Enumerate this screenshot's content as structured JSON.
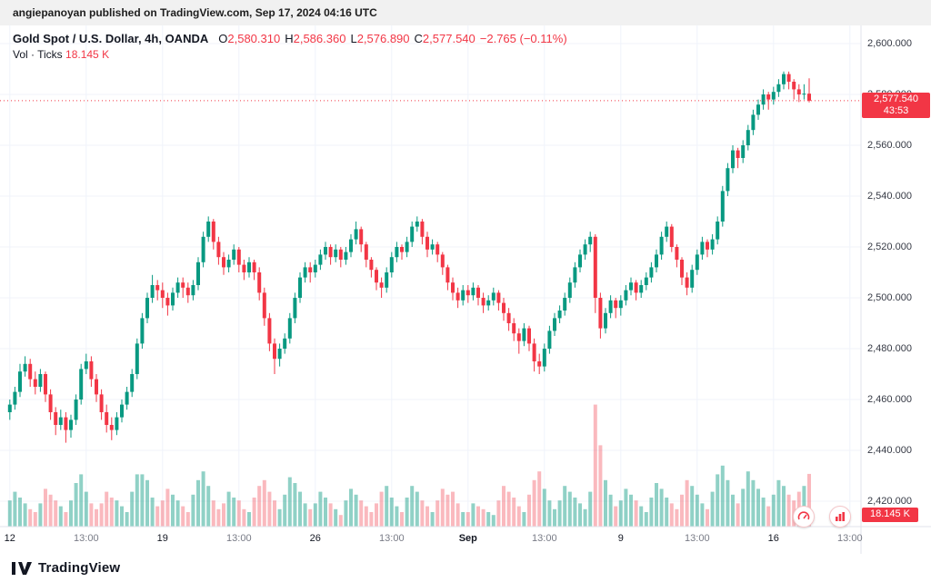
{
  "attribution": "angiepanoyan published on TradingView.com, Sep 17, 2024 04:16 UTC",
  "legend": {
    "symbol": "Gold Spot / U.S. Dollar, 4h, OANDA",
    "o_label": "O",
    "o_value": "2,580.310",
    "h_label": "H",
    "h_value": "2,586.360",
    "l_label": "L",
    "l_value": "2,576.890",
    "c_label": "C",
    "c_value": "2,577.540",
    "change": "−2.765 (−0.11%)",
    "vol_label": "Vol · Ticks",
    "vol_value": "18.145 K"
  },
  "price_badge": {
    "price": "2,577.540",
    "countdown": "43:53"
  },
  "volume_badge": {
    "value": "18.145 K"
  },
  "footer": {
    "brand": "TradingView"
  },
  "colors": {
    "up": "#089981",
    "down": "#f23645",
    "volume_up": "rgba(8,153,129,0.45)",
    "volume_down": "rgba(242,54,69,0.35)",
    "grid": "#f0f3fa",
    "axis_line": "#e0e3eb"
  },
  "chart_data": {
    "type": "candlestick",
    "symbol": "Gold Spot / U.S. Dollar",
    "interval": "4h",
    "exchange": "OANDA",
    "open": 2580.31,
    "high": 2586.36,
    "low": 2576.89,
    "close": 2577.54,
    "change": -2.765,
    "change_pct": -0.11,
    "last_price": 2577.54,
    "countdown": "43:53",
    "volume_label": "18.145 K",
    "y_axis": {
      "min": 2420,
      "max": 2600,
      "step": 20,
      "labels": [
        "2,600.000",
        "2,580.000",
        "2,560.000",
        "2,540.000",
        "2,520.000",
        "2,500.000",
        "2,480.000",
        "2,460.000",
        "2,440.000",
        "2,420.000"
      ]
    },
    "x_ticks": [
      {
        "label": "12",
        "index": 0,
        "major": true
      },
      {
        "label": "13:00",
        "index": 15
      },
      {
        "label": "19",
        "index": 30,
        "major": true
      },
      {
        "label": "13:00",
        "index": 45
      },
      {
        "label": "26",
        "index": 60,
        "major": true
      },
      {
        "label": "13:00",
        "index": 75
      },
      {
        "label": "Sep",
        "index": 90,
        "major": true,
        "bold": true
      },
      {
        "label": "13:00",
        "index": 105
      },
      {
        "label": "9",
        "index": 120,
        "major": true
      },
      {
        "label": "13:00",
        "index": 135
      },
      {
        "label": "16",
        "index": 150,
        "major": true
      },
      {
        "label": "13:00",
        "index": 165
      }
    ],
    "candles": [
      [
        2455,
        2460,
        2452,
        2458
      ],
      [
        2458,
        2465,
        2456,
        2463
      ],
      [
        2463,
        2474,
        2461,
        2471
      ],
      [
        2471,
        2477,
        2469,
        2474
      ],
      [
        2474,
        2476,
        2465,
        2468
      ],
      [
        2468,
        2471,
        2462,
        2465
      ],
      [
        2465,
        2472,
        2463,
        2470
      ],
      [
        2470,
        2471,
        2459,
        2462
      ],
      [
        2462,
        2464,
        2452,
        2455
      ],
      [
        2455,
        2457,
        2446,
        2450
      ],
      [
        2450,
        2456,
        2448,
        2453
      ],
      [
        2453,
        2455,
        2443,
        2448
      ],
      [
        2448,
        2454,
        2445,
        2452
      ],
      [
        2452,
        2462,
        2450,
        2460
      ],
      [
        2460,
        2474,
        2458,
        2472
      ],
      [
        2472,
        2478,
        2470,
        2475
      ],
      [
        2475,
        2477,
        2465,
        2468
      ],
      [
        2468,
        2470,
        2459,
        2462
      ],
      [
        2462,
        2464,
        2452,
        2455
      ],
      [
        2455,
        2458,
        2447,
        2450
      ],
      [
        2450,
        2453,
        2444,
        2448
      ],
      [
        2448,
        2455,
        2446,
        2453
      ],
      [
        2453,
        2460,
        2451,
        2458
      ],
      [
        2458,
        2465,
        2456,
        2463
      ],
      [
        2463,
        2472,
        2461,
        2470
      ],
      [
        2470,
        2484,
        2468,
        2482
      ],
      [
        2482,
        2494,
        2480,
        2492
      ],
      [
        2492,
        2502,
        2490,
        2500
      ],
      [
        2500,
        2509,
        2498,
        2505
      ],
      [
        2505,
        2507,
        2499,
        2503
      ],
      [
        2503,
        2506,
        2496,
        2500
      ],
      [
        2500,
        2502,
        2493,
        2497
      ],
      [
        2497,
        2504,
        2495,
        2502
      ],
      [
        2502,
        2508,
        2500,
        2506
      ],
      [
        2506,
        2508,
        2500,
        2504
      ],
      [
        2504,
        2506,
        2498,
        2501
      ],
      [
        2501,
        2507,
        2499,
        2505
      ],
      [
        2505,
        2516,
        2503,
        2514
      ],
      [
        2514,
        2526,
        2512,
        2524
      ],
      [
        2524,
        2532,
        2522,
        2530
      ],
      [
        2530,
        2531,
        2519,
        2522
      ],
      [
        2522,
        2524,
        2513,
        2516
      ],
      [
        2516,
        2518,
        2509,
        2512
      ],
      [
        2512,
        2517,
        2510,
        2515
      ],
      [
        2515,
        2521,
        2513,
        2519
      ],
      [
        2519,
        2520,
        2510,
        2513
      ],
      [
        2513,
        2515,
        2507,
        2510
      ],
      [
        2510,
        2516,
        2508,
        2514
      ],
      [
        2514,
        2515,
        2507,
        2510
      ],
      [
        2510,
        2512,
        2499,
        2502
      ],
      [
        2502,
        2504,
        2489,
        2492
      ],
      [
        2492,
        2494,
        2479,
        2482
      ],
      [
        2482,
        2484,
        2470,
        2476
      ],
      [
        2476,
        2482,
        2473,
        2480
      ],
      [
        2480,
        2486,
        2478,
        2484
      ],
      [
        2484,
        2494,
        2482,
        2492
      ],
      [
        2492,
        2502,
        2490,
        2500
      ],
      [
        2500,
        2510,
        2498,
        2508
      ],
      [
        2508,
        2514,
        2506,
        2512
      ],
      [
        2512,
        2514,
        2506,
        2510
      ],
      [
        2510,
        2515,
        2508,
        2513
      ],
      [
        2513,
        2519,
        2511,
        2517
      ],
      [
        2517,
        2522,
        2515,
        2520
      ],
      [
        2520,
        2521,
        2513,
        2516
      ],
      [
        2516,
        2521,
        2514,
        2519
      ],
      [
        2519,
        2520,
        2512,
        2515
      ],
      [
        2515,
        2520,
        2513,
        2518
      ],
      [
        2518,
        2525,
        2516,
        2523
      ],
      [
        2523,
        2530,
        2521,
        2527
      ],
      [
        2527,
        2528,
        2518,
        2521
      ],
      [
        2521,
        2522,
        2512,
        2515
      ],
      [
        2515,
        2516,
        2508,
        2511
      ],
      [
        2511,
        2512,
        2503,
        2506
      ],
      [
        2506,
        2508,
        2500,
        2504
      ],
      [
        2504,
        2512,
        2502,
        2510
      ],
      [
        2510,
        2518,
        2508,
        2516
      ],
      [
        2516,
        2522,
        2514,
        2520
      ],
      [
        2520,
        2521,
        2515,
        2518
      ],
      [
        2518,
        2524,
        2516,
        2522
      ],
      [
        2522,
        2530,
        2520,
        2528
      ],
      [
        2528,
        2532,
        2526,
        2530
      ],
      [
        2530,
        2531,
        2521,
        2524
      ],
      [
        2524,
        2526,
        2516,
        2519
      ],
      [
        2519,
        2523,
        2517,
        2521
      ],
      [
        2521,
        2522,
        2514,
        2517
      ],
      [
        2517,
        2518,
        2509,
        2512
      ],
      [
        2512,
        2513,
        2503,
        2506
      ],
      [
        2506,
        2508,
        2499,
        2502
      ],
      [
        2502,
        2504,
        2496,
        2499
      ],
      [
        2499,
        2505,
        2497,
        2503
      ],
      [
        2503,
        2505,
        2498,
        2501
      ],
      [
        2501,
        2506,
        2499,
        2504
      ],
      [
        2504,
        2505,
        2497,
        2500
      ],
      [
        2500,
        2502,
        2494,
        2497
      ],
      [
        2497,
        2501,
        2495,
        2499
      ],
      [
        2499,
        2504,
        2497,
        2502
      ],
      [
        2502,
        2503,
        2495,
        2498
      ],
      [
        2498,
        2500,
        2491,
        2494
      ],
      [
        2494,
        2496,
        2487,
        2490
      ],
      [
        2490,
        2492,
        2483,
        2486
      ],
      [
        2486,
        2488,
        2478,
        2483
      ],
      [
        2483,
        2490,
        2481,
        2488
      ],
      [
        2488,
        2489,
        2479,
        2482
      ],
      [
        2482,
        2484,
        2471,
        2475
      ],
      [
        2475,
        2478,
        2470,
        2473
      ],
      [
        2473,
        2482,
        2471,
        2480
      ],
      [
        2480,
        2489,
        2478,
        2487
      ],
      [
        2487,
        2494,
        2485,
        2492
      ],
      [
        2492,
        2497,
        2490,
        2495
      ],
      [
        2495,
        2502,
        2493,
        2500
      ],
      [
        2500,
        2508,
        2498,
        2506
      ],
      [
        2506,
        2514,
        2504,
        2512
      ],
      [
        2512,
        2519,
        2510,
        2517
      ],
      [
        2517,
        2523,
        2515,
        2521
      ],
      [
        2521,
        2526,
        2518,
        2524
      ],
      [
        2524,
        2525,
        2494,
        2500
      ],
      [
        2500,
        2502,
        2484,
        2488
      ],
      [
        2488,
        2496,
        2486,
        2494
      ],
      [
        2494,
        2501,
        2492,
        2499
      ],
      [
        2499,
        2500,
        2492,
        2496
      ],
      [
        2496,
        2501,
        2493,
        2499
      ],
      [
        2499,
        2505,
        2497,
        2503
      ],
      [
        2503,
        2508,
        2501,
        2506
      ],
      [
        2506,
        2507,
        2499,
        2502
      ],
      [
        2502,
        2507,
        2500,
        2505
      ],
      [
        2505,
        2510,
        2503,
        2508
      ],
      [
        2508,
        2514,
        2506,
        2512
      ],
      [
        2512,
        2519,
        2510,
        2517
      ],
      [
        2517,
        2526,
        2515,
        2524
      ],
      [
        2524,
        2530,
        2522,
        2528
      ],
      [
        2528,
        2529,
        2518,
        2520
      ],
      [
        2520,
        2521,
        2512,
        2515
      ],
      [
        2515,
        2516,
        2505,
        2508
      ],
      [
        2508,
        2510,
        2501,
        2504
      ],
      [
        2504,
        2513,
        2502,
        2511
      ],
      [
        2511,
        2519,
        2509,
        2517
      ],
      [
        2517,
        2524,
        2515,
        2522
      ],
      [
        2522,
        2523,
        2516,
        2519
      ],
      [
        2519,
        2525,
        2517,
        2523
      ],
      [
        2523,
        2532,
        2521,
        2530
      ],
      [
        2530,
        2544,
        2528,
        2542
      ],
      [
        2542,
        2553,
        2540,
        2551
      ],
      [
        2551,
        2560,
        2549,
        2558
      ],
      [
        2558,
        2559,
        2551,
        2555
      ],
      [
        2555,
        2562,
        2553,
        2560
      ],
      [
        2560,
        2568,
        2558,
        2566
      ],
      [
        2566,
        2574,
        2564,
        2572
      ],
      [
        2572,
        2578,
        2570,
        2576
      ],
      [
        2576,
        2582,
        2574,
        2580
      ],
      [
        2580,
        2581,
        2574,
        2578
      ],
      [
        2578,
        2583,
        2576,
        2581
      ],
      [
        2581,
        2586,
        2579,
        2584
      ],
      [
        2584,
        2589,
        2582,
        2588
      ],
      [
        2588,
        2589,
        2582,
        2585
      ],
      [
        2585,
        2586,
        2578,
        2582
      ],
      [
        2582,
        2584,
        2577,
        2580
      ],
      [
        2580,
        2584,
        2578,
        2580.3
      ],
      [
        2580.31,
        2586.36,
        2576.89,
        2577.54
      ]
    ],
    "volumes": [
      9,
      12,
      10,
      8,
      6,
      5,
      8,
      13,
      11,
      9,
      7,
      5,
      9,
      15,
      18,
      12,
      8,
      6,
      8,
      12,
      10,
      9,
      7,
      5,
      12,
      18,
      18,
      16,
      10,
      7,
      9,
      13,
      11,
      9,
      7,
      5,
      11,
      16,
      19,
      14,
      9,
      6,
      8,
      12,
      10,
      9,
      6,
      5,
      10,
      14,
      16,
      12,
      9,
      6,
      11,
      17,
      15,
      12,
      8,
      6,
      8,
      12,
      10,
      8,
      6,
      4,
      9,
      13,
      11,
      9,
      7,
      5,
      8,
      12,
      14,
      10,
      7,
      5,
      10,
      14,
      12,
      9,
      7,
      5,
      9,
      13,
      11,
      12,
      8,
      5,
      5,
      8,
      7,
      6,
      5,
      4,
      9,
      14,
      12,
      10,
      7,
      5,
      11,
      16,
      19,
      13,
      9,
      6,
      9,
      14,
      12,
      10,
      8,
      6,
      12,
      42,
      28,
      16,
      11,
      7,
      9,
      13,
      11,
      9,
      7,
      5,
      10,
      15,
      13,
      10,
      8,
      6,
      11,
      16,
      14,
      11,
      8,
      6,
      12,
      18,
      21,
      16,
      11,
      8,
      13,
      19,
      16,
      13,
      10,
      7,
      11,
      16,
      14,
      11,
      9,
      12,
      14,
      18.145
    ]
  }
}
